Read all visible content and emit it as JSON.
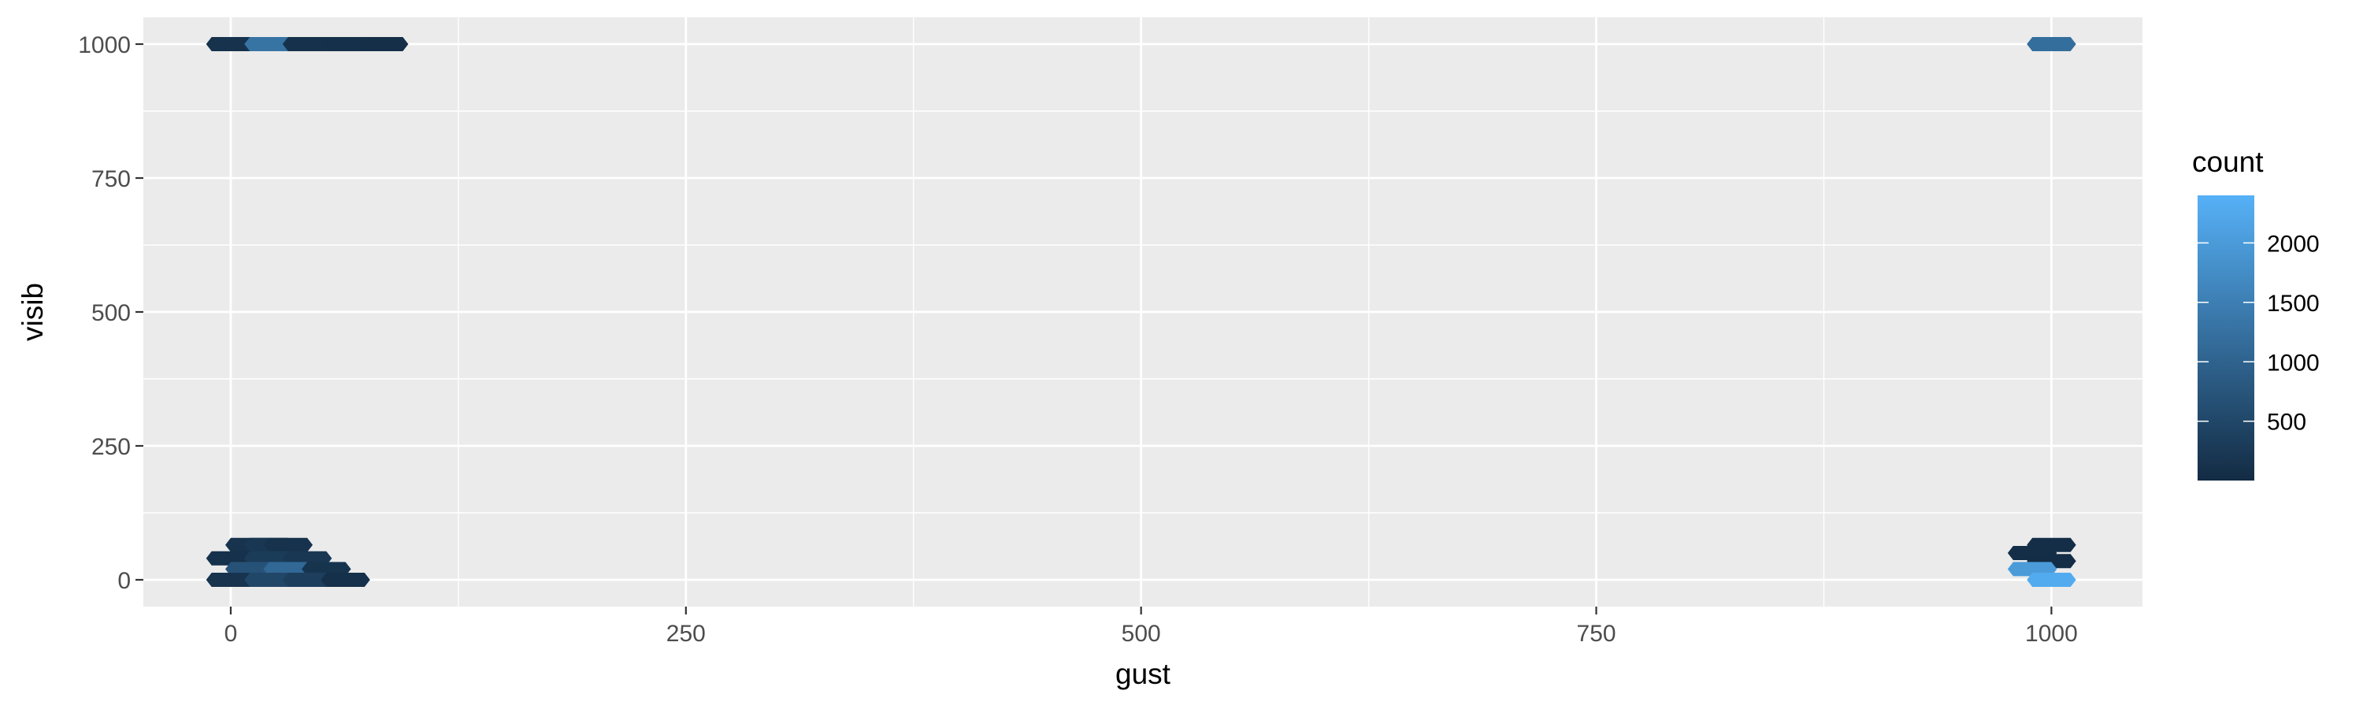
{
  "chart_data": {
    "type": "hexbin",
    "xlabel": "gust",
    "ylabel": "visib",
    "xlim": [
      -48,
      1050
    ],
    "ylim": [
      -50,
      1050
    ],
    "x_ticks": [
      0,
      250,
      500,
      750,
      1000
    ],
    "y_ticks": [
      0,
      250,
      500,
      750,
      1000
    ],
    "x_tick_labels": [
      "0",
      "250",
      "500",
      "750",
      "1000"
    ],
    "y_tick_labels": [
      "0",
      "250",
      "500",
      "750",
      "1000"
    ],
    "grid": true,
    "legend": {
      "title": "count",
      "placement": "right",
      "range": [
        1,
        2400
      ],
      "ticks": [
        500,
        1000,
        1500,
        2000
      ],
      "tick_labels": [
        "500",
        "1000",
        "1500",
        "2000"
      ],
      "colors": {
        "low": "#132B43",
        "high": "#56B1F7"
      }
    },
    "hex_width": 21,
    "hexes": [
      {
        "x": 0,
        "y": 1000,
        "count": 120
      },
      {
        "x": 21,
        "y": 1000,
        "count": 1300
      },
      {
        "x": 42,
        "y": 1000,
        "count": 110
      },
      {
        "x": 63,
        "y": 1000,
        "count": 90
      },
      {
        "x": 84,
        "y": 1000,
        "count": 70
      },
      {
        "x": 10.5,
        "y": 65,
        "count": 150
      },
      {
        "x": 21,
        "y": 65,
        "count": 200
      },
      {
        "x": 31.5,
        "y": 65,
        "count": 130
      },
      {
        "x": 0,
        "y": 40,
        "count": 110
      },
      {
        "x": 21,
        "y": 40,
        "count": 300
      },
      {
        "x": 42,
        "y": 40,
        "count": 220
      },
      {
        "x": 10.5,
        "y": 20,
        "count": 700
      },
      {
        "x": 31.5,
        "y": 20,
        "count": 1100
      },
      {
        "x": 52.5,
        "y": 20,
        "count": 160
      },
      {
        "x": 0,
        "y": 0,
        "count": 150
      },
      {
        "x": 21,
        "y": 0,
        "count": 500
      },
      {
        "x": 42,
        "y": 0,
        "count": 350
      },
      {
        "x": 63,
        "y": 0,
        "count": 90
      },
      {
        "x": 1000,
        "y": 1000,
        "count": 1200
      },
      {
        "x": 1000,
        "y": 65,
        "count": 60
      },
      {
        "x": 989.5,
        "y": 50,
        "count": 50
      },
      {
        "x": 1000,
        "y": 35,
        "count": 40
      },
      {
        "x": 989.5,
        "y": 20,
        "count": 2000
      },
      {
        "x": 1000,
        "y": 0,
        "count": 2300
      }
    ]
  }
}
